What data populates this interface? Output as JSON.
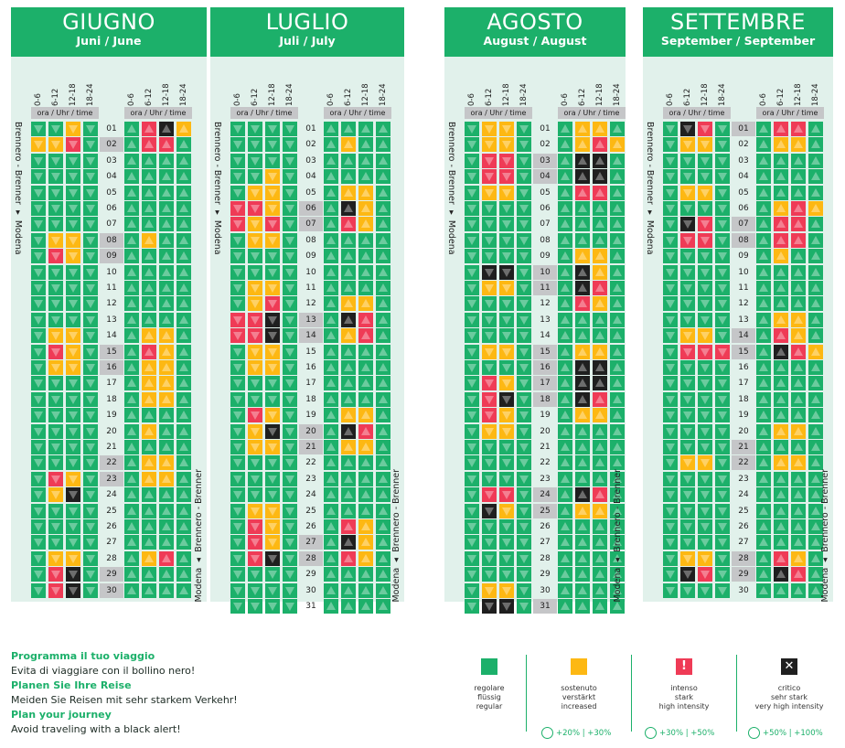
{
  "time_slots": [
    "0-6",
    "6-12",
    "12-18",
    "18-24"
  ],
  "ora_label": "ora / Uhr / time",
  "direction_south": "Brennero - Brenner ▾ Modena",
  "direction_north": "Modena ▴ Brennero - Brenner",
  "months": [
    {
      "name": "GIUGNO",
      "sub": "Juni / June",
      "days": 30,
      "highlight": [
        2,
        8,
        9,
        15,
        16,
        22,
        23,
        29,
        30
      ],
      "south": [
        "ggyg",
        "yyrg",
        "gggg",
        "gggg",
        "gggg",
        "gggg",
        "gggg",
        "gyyg",
        "gryg",
        "gggg",
        "gggg",
        "gggg",
        "gggg",
        "gyyg",
        "gryg",
        "gyyg",
        "gggg",
        "gggg",
        "gggg",
        "gggg",
        "gggg",
        "gggg",
        "gryg",
        "gykg",
        "gggg",
        "gggg",
        "gggg",
        "gyyg",
        "grkg",
        "grkg"
      ],
      "north": [
        "grky",
        "grrg",
        "gggg",
        "gggg",
        "gggg",
        "gggg",
        "gggg",
        "gygg",
        "gggg",
        "gggg",
        "gggg",
        "gggg",
        "gggg",
        "gyyg",
        "gryg",
        "gyyg",
        "gyyg",
        "gyyg",
        "gggg",
        "gygg",
        "gggg",
        "gyyg",
        "gyyg",
        "gggg",
        "gggg",
        "gggg",
        "gggg",
        "gyrg",
        "gggg",
        "gggg"
      ]
    },
    {
      "name": "LUGLIO",
      "sub": "Juli / July",
      "days": 31,
      "highlight": [
        6,
        7,
        13,
        14,
        20,
        21,
        27,
        28
      ],
      "south": [
        "gggg",
        "gggg",
        "gggg",
        "ggyg",
        "gyyg",
        "rryg",
        "ryrg",
        "gyyg",
        "gggg",
        "gggg",
        "gyyg",
        "gyrg",
        "rrkg",
        "rrkg",
        "gyyg",
        "gyyg",
        "gggg",
        "gggg",
        "gryg",
        "gykg",
        "gyyg",
        "gggg",
        "gggg",
        "gggg",
        "gyyg",
        "gryg",
        "gryg",
        "grkg",
        "gggg",
        "gggg",
        "gggg"
      ],
      "north": [
        "gggg",
        "gygg",
        "gggg",
        "gggg",
        "gyyg",
        "gkyg",
        "gryg",
        "gggg",
        "gggg",
        "gggg",
        "gggg",
        "gyyg",
        "gkrg",
        "gyrg",
        "gggg",
        "gggg",
        "gggg",
        "gggg",
        "gyyg",
        "gkrg",
        "gyyg",
        "gggg",
        "gggg",
        "gggg",
        "gggg",
        "gryg",
        "gkyg",
        "gryg",
        "gggg",
        "gggg",
        "gggg"
      ]
    },
    {
      "name": "AGOSTO",
      "sub": "August / August",
      "days": 31,
      "highlight": [
        3,
        4,
        10,
        11,
        15,
        16,
        17,
        18,
        24,
        25,
        31
      ],
      "south": [
        "gyyg",
        "gyyg",
        "grrg",
        "grrg",
        "gyyg",
        "gggg",
        "gggg",
        "gggg",
        "gggg",
        "gkkg",
        "gyyg",
        "gggg",
        "gggg",
        "gggg",
        "gyyg",
        "gggg",
        "gryg",
        "grkg",
        "gryg",
        "gyyg",
        "gggg",
        "gggg",
        "gggg",
        "grrg",
        "gkyg",
        "gggg",
        "gggg",
        "gggg",
        "gggg",
        "gyyg",
        "gkkg"
      ],
      "north": [
        "gyyg",
        "gyry",
        "gkkg",
        "gkkg",
        "grrg",
        "gggg",
        "gggg",
        "gggg",
        "gyyg",
        "gkyg",
        "gkrg",
        "gryg",
        "gggg",
        "gggg",
        "gyyg",
        "gkkg",
        "gkkg",
        "gkrg",
        "gyyg",
        "gggg",
        "gggg",
        "gggg",
        "gggg",
        "gkrg",
        "gyyg",
        "gggg",
        "gggg",
        "gggg",
        "gggg",
        "gggg",
        "gggg"
      ]
    },
    {
      "name": "SETTEMBRE",
      "sub": "September / September",
      "days": 30,
      "highlight": [
        1,
        7,
        8,
        14,
        15,
        21,
        22,
        28,
        29
      ],
      "south": [
        "gkrg",
        "gyyg",
        "gggg",
        "gggg",
        "gyyg",
        "gggg",
        "gkrg",
        "grrg",
        "gggg",
        "gggg",
        "gggg",
        "gggg",
        "gggg",
        "gyyg",
        "grrr",
        "gggg",
        "gggg",
        "gggg",
        "gggg",
        "gggg",
        "gggg",
        "gyyg",
        "gggg",
        "gggg",
        "gggg",
        "gggg",
        "gggg",
        "gyyg",
        "gkrg",
        "gggg"
      ],
      "north": [
        "grrg",
        "gyyg",
        "gggg",
        "gggg",
        "gggg",
        "gyry",
        "grrg",
        "grrg",
        "gygg",
        "gggg",
        "gggg",
        "gggg",
        "gyyg",
        "gryg",
        "gkry",
        "gggg",
        "gggg",
        "gggg",
        "gggg",
        "gyyg",
        "gggg",
        "gyyg",
        "gggg",
        "gggg",
        "gggg",
        "gggg",
        "gggg",
        "gryg",
        "gkrg",
        "gggg"
      ]
    }
  ],
  "legend": {
    "lines": [
      {
        "head": "Programma il tuo viaggio",
        "text": "Evita di viaggiare con il bollino nero!"
      },
      {
        "head": "Planen Sie Ihre Reise",
        "text": "Meiden Sie Reisen mit sehr starkem Verkehr!"
      },
      {
        "head": "Plan your journey",
        "text": "Avoid traveling with a black alert!"
      }
    ],
    "boxes": [
      {
        "color": "#1cb06a",
        "l1": "regolare",
        "l2": "flüssig",
        "l3": "regular",
        "pct": ""
      },
      {
        "color": "#fdb813",
        "l1": "sostenuto",
        "l2": "verstärkt",
        "l3": "increased",
        "pct": "+20% | +30%"
      },
      {
        "color": "#ef3b56",
        "l1": "intenso",
        "l2": "stark",
        "l3": "high intensity",
        "pct": "+30% | +50%"
      },
      {
        "color": "#1f1f1f",
        "l1": "critico",
        "l2": "sehr stark",
        "l3": "very high intensity",
        "pct": "+50% | +100%"
      }
    ]
  }
}
